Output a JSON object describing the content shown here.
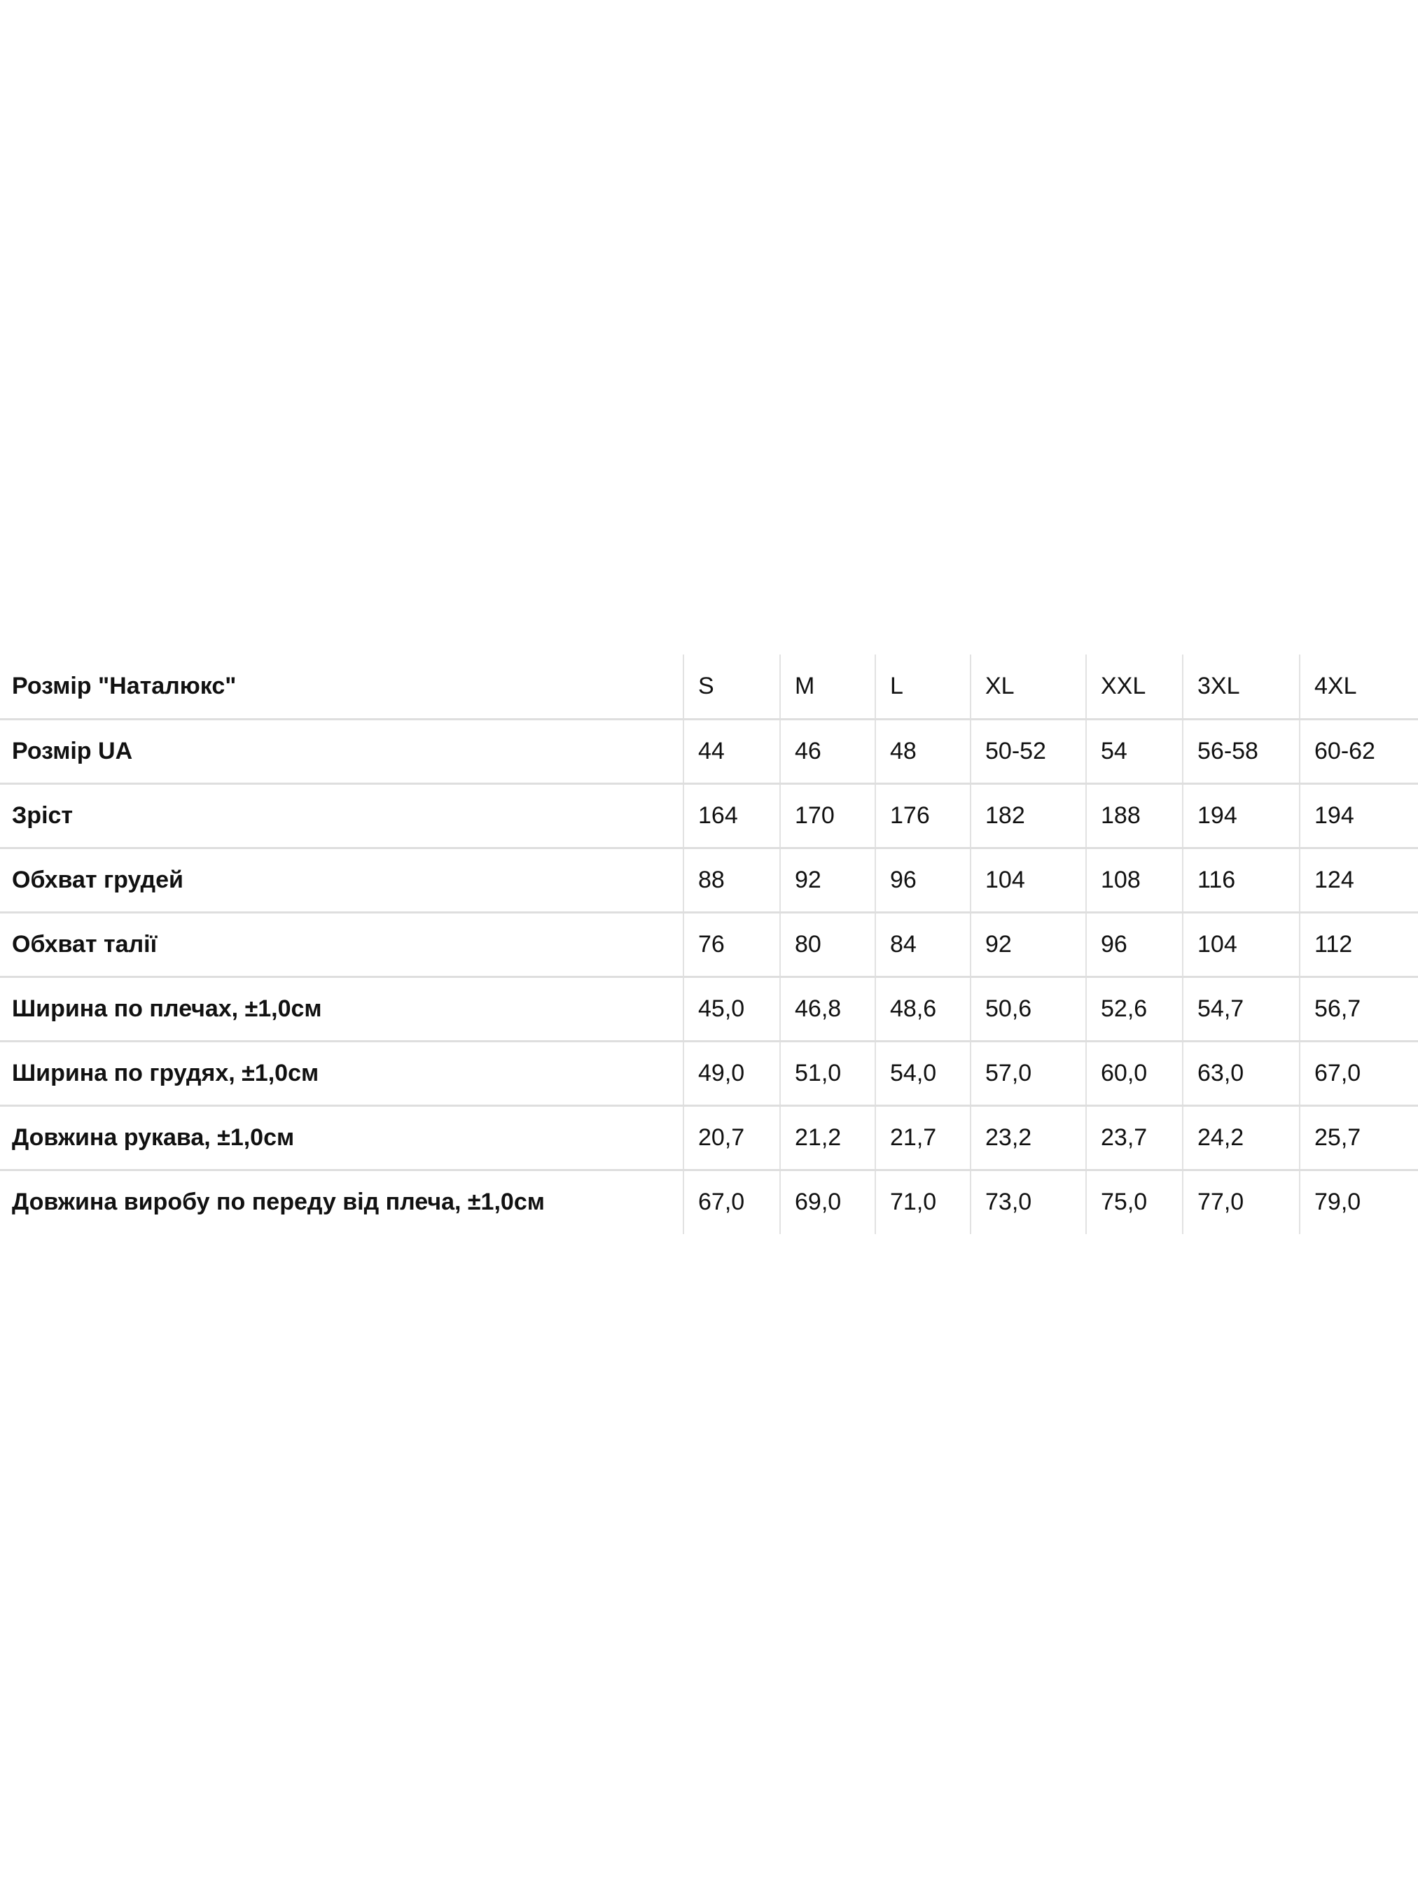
{
  "size_table": {
    "rows": [
      {
        "label": "Розмір \"Наталюкс\"",
        "values": [
          "S",
          "M",
          "L",
          "XL",
          "XXL",
          "3XL",
          "4XL"
        ]
      },
      {
        "label": "Розмір UA",
        "values": [
          "44",
          "46",
          "48",
          "50-52",
          "54",
          "56-58",
          "60-62"
        ]
      },
      {
        "label": "Зріст",
        "values": [
          "164",
          "170",
          "176",
          "182",
          "188",
          "194",
          "194"
        ]
      },
      {
        "label": "Обхват грудей",
        "values": [
          "88",
          "92",
          "96",
          "104",
          "108",
          "116",
          "124"
        ]
      },
      {
        "label": "Обхват талії",
        "values": [
          "76",
          "80",
          "84",
          "92",
          "96",
          "104",
          "112"
        ]
      },
      {
        "label": "Ширина по плечах, ±1,0см",
        "values": [
          "45,0",
          "46,8",
          "48,6",
          "50,6",
          "52,6",
          "54,7",
          "56,7"
        ]
      },
      {
        "label": "Ширина по грудях, ±1,0см",
        "values": [
          "49,0",
          "51,0",
          "54,0",
          "57,0",
          "60,0",
          "63,0",
          "67,0"
        ]
      },
      {
        "label": "Довжина рукава, ±1,0см",
        "values": [
          "20,7",
          "21,2",
          "21,7",
          "23,2",
          "23,7",
          "24,2",
          "25,7"
        ]
      },
      {
        "label": "Довжина виробу по переду від плеча, ±1,0см",
        "values": [
          "67,0",
          "69,0",
          "71,0",
          "73,0",
          "75,0",
          "77,0",
          "79,0"
        ]
      }
    ]
  }
}
